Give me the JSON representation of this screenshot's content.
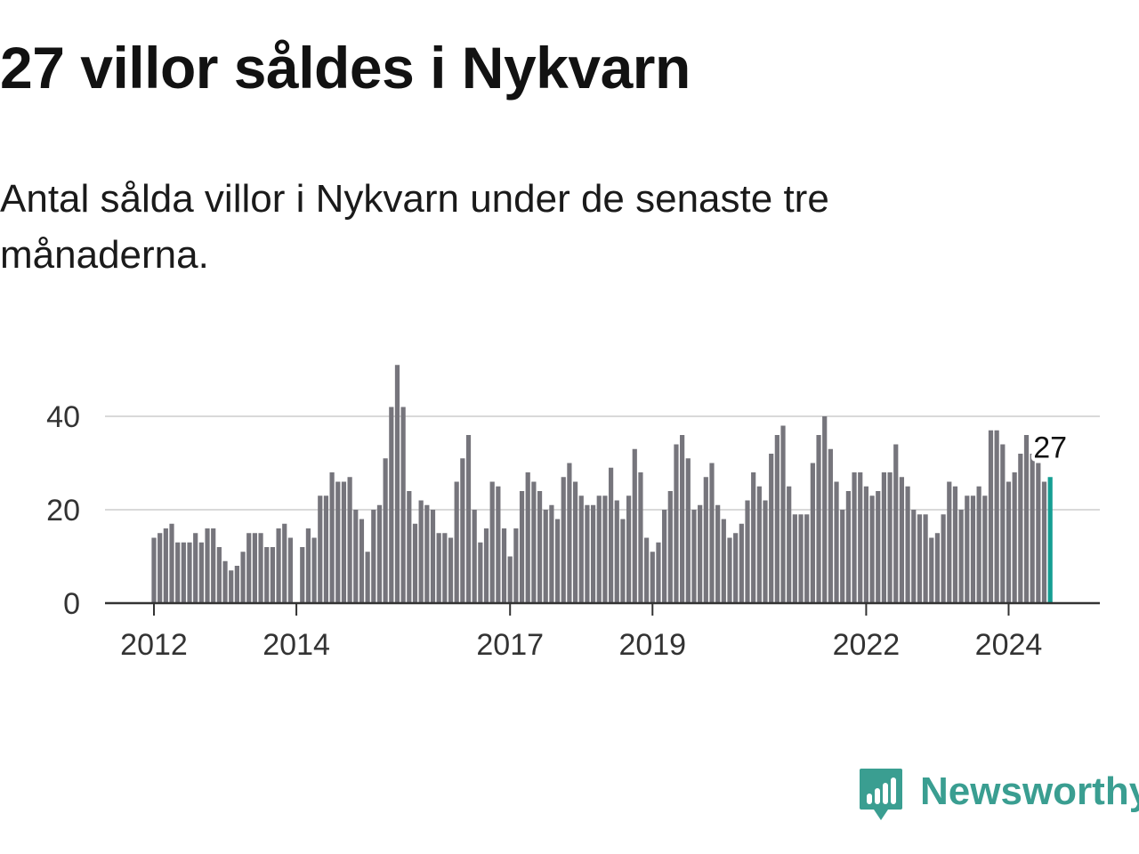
{
  "title": "27 villor såldes i Nykvarn",
  "subtitle": "Antal sålda villor i Nykvarn under de senaste tre månaderna.",
  "brand": {
    "name": "Newsworthy",
    "icon": "newsworthy-logo-icon",
    "color": "#3a9e91"
  },
  "chart_data": {
    "type": "bar",
    "title": "27 villor såldes i Nykvarn",
    "xlabel": "",
    "ylabel": "",
    "ylim": [
      0,
      50
    ],
    "yticks": [
      0,
      20,
      40
    ],
    "grid": true,
    "legend": "none",
    "bar_color": "#76757c",
    "highlight_color": "#159e93",
    "start": "2012-01",
    "xtick_labels": [
      {
        "label": "2012",
        "month_index": 0
      },
      {
        "label": "2014",
        "month_index": 24
      },
      {
        "label": "2017",
        "month_index": 60
      },
      {
        "label": "2019",
        "month_index": 84
      },
      {
        "label": "2022",
        "month_index": 120
      },
      {
        "label": "2024",
        "month_index": 144
      }
    ],
    "highlight_label": "27",
    "values": [
      14,
      15,
      16,
      17,
      13,
      13,
      13,
      15,
      13,
      16,
      16,
      12,
      9,
      7,
      8,
      11,
      15,
      15,
      15,
      12,
      12,
      16,
      17,
      14,
      0,
      12,
      16,
      14,
      23,
      23,
      28,
      26,
      26,
      27,
      20,
      18,
      11,
      20,
      21,
      31,
      42,
      51,
      42,
      24,
      17,
      22,
      21,
      20,
      15,
      15,
      14,
      26,
      31,
      36,
      20,
      13,
      16,
      26,
      25,
      16,
      10,
      16,
      24,
      28,
      26,
      24,
      20,
      21,
      18,
      27,
      30,
      26,
      23,
      21,
      21,
      23,
      23,
      29,
      22,
      18,
      23,
      33,
      28,
      14,
      11,
      13,
      20,
      24,
      34,
      36,
      31,
      20,
      21,
      27,
      30,
      21,
      18,
      14,
      15,
      17,
      22,
      28,
      25,
      22,
      32,
      36,
      38,
      25,
      19,
      19,
      19,
      30,
      36,
      40,
      33,
      26,
      20,
      24,
      28,
      28,
      25,
      23,
      24,
      28,
      28,
      34,
      27,
      25,
      20,
      19,
      19,
      14,
      15,
      19,
      26,
      25,
      20,
      23,
      23,
      25,
      23,
      37,
      37,
      34,
      26,
      28,
      32,
      36,
      32,
      30,
      26,
      27
    ]
  }
}
